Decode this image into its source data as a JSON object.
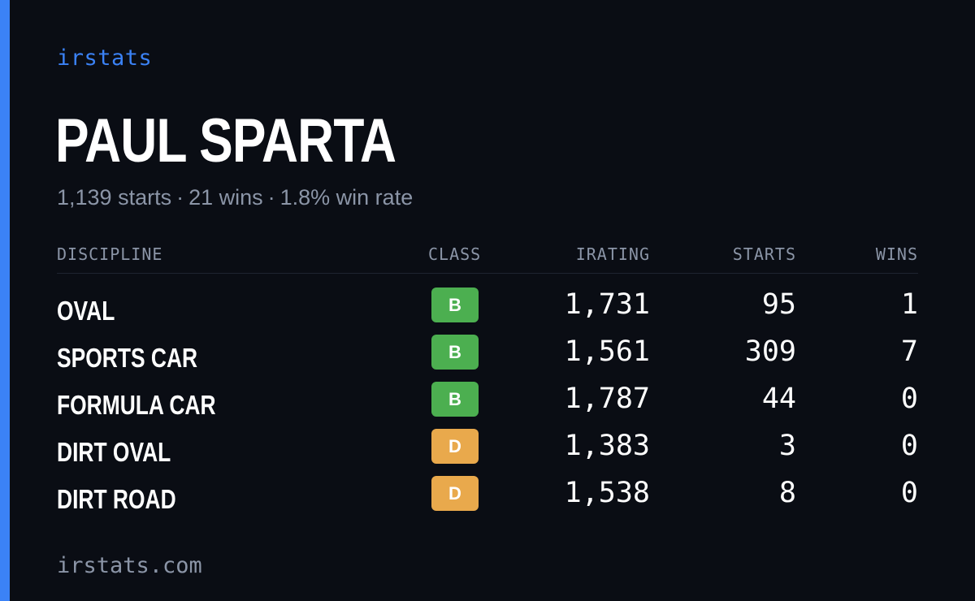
{
  "brand": "irstats",
  "player": {
    "name": "PAUL SPARTA",
    "starts_text": "1,139 starts",
    "wins_text": "21 wins",
    "win_rate_text": "1.8% win rate",
    "separator": "·"
  },
  "table": {
    "headers": {
      "discipline": "DISCIPLINE",
      "class": "CLASS",
      "irating": "IRATING",
      "starts": "STARTS",
      "wins": "WINS"
    },
    "rows": [
      {
        "discipline": "OVAL",
        "class": "B",
        "irating": "1,731",
        "starts": "95",
        "wins": "1"
      },
      {
        "discipline": "SPORTS CAR",
        "class": "B",
        "irating": "1,561",
        "starts": "309",
        "wins": "7"
      },
      {
        "discipline": "FORMULA CAR",
        "class": "B",
        "irating": "1,787",
        "starts": "44",
        "wins": "0"
      },
      {
        "discipline": "DIRT OVAL",
        "class": "D",
        "irating": "1,383",
        "starts": "3",
        "wins": "0"
      },
      {
        "discipline": "DIRT ROAD",
        "class": "D",
        "irating": "1,538",
        "starts": "8",
        "wins": "0"
      }
    ]
  },
  "class_colors": {
    "B": "#4caf50",
    "D": "#e9a94c"
  },
  "colors": {
    "accent": "#3b82f6",
    "background": "#0a0d14",
    "muted_text": "#8b95a7"
  },
  "footer": "irstats.com"
}
